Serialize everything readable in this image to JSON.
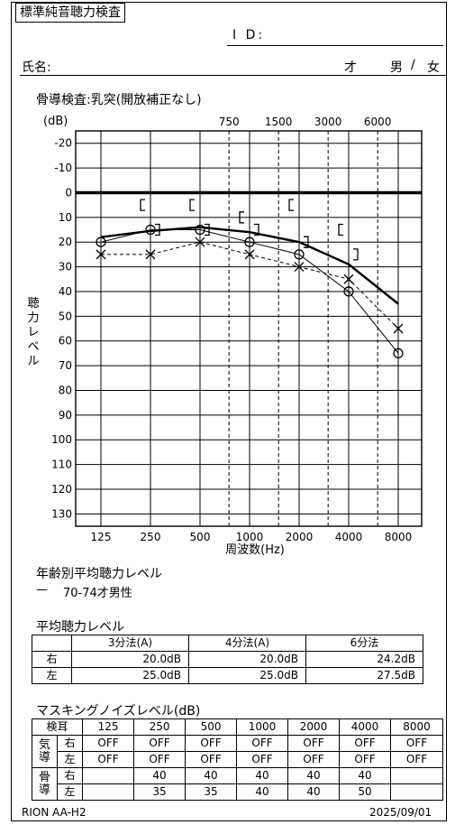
{
  "header": {
    "form_title": "標準純音聴力検査",
    "id_label": "I D:",
    "name_label": "氏名:",
    "age_unit": "才",
    "sex_male": "男",
    "sex_sep": "/",
    "sex_female": "女"
  },
  "chart_data": {
    "type": "line",
    "title": "骨導検査:乳突(開放補正なし)",
    "xlabel": "周波数(Hz)",
    "ylabel": "聴力レベル",
    "yunit_label": "(dB)",
    "x_scale": "log2",
    "x_categories": [
      "125",
      "250",
      "500",
      "1000",
      "2000",
      "4000",
      "8000"
    ],
    "x_interoctave": [
      "750",
      "1500",
      "3000",
      "6000"
    ],
    "y_ticks": [
      "-20",
      "-10",
      "0",
      "10",
      "20",
      "30",
      "40",
      "50",
      "60",
      "70",
      "80",
      "90",
      "100",
      "110",
      "120",
      "130"
    ],
    "ylim": [
      -25,
      135
    ],
    "y_inverted": true,
    "grid": true,
    "reference_line_db": 0,
    "series": [
      {
        "marker": "circle",
        "style": "solid-thin",
        "x": [
          125,
          250,
          500,
          1000,
          2000,
          4000,
          8000
        ],
        "y": [
          20,
          15,
          15,
          20,
          25,
          40,
          65
        ]
      },
      {
        "marker": "cross",
        "style": "dashed",
        "x": [
          125,
          250,
          500,
          1000,
          2000,
          4000,
          8000
        ],
        "y": [
          25,
          25,
          20,
          25,
          30,
          35,
          55
        ]
      },
      {
        "marker": "none",
        "style": "solid-thick",
        "x": [
          125,
          250,
          500,
          1000,
          2000,
          4000,
          8000
        ],
        "y": [
          18,
          15.5,
          14,
          16,
          20,
          29,
          45
        ]
      },
      {
        "marker": "bracket-left",
        "style": "none",
        "x": [
          250,
          500,
          1000,
          2000,
          4000
        ],
        "y": [
          5,
          5,
          10,
          5,
          15
        ]
      },
      {
        "marker": "bracket-right",
        "style": "none",
        "x": [
          250,
          500,
          1000,
          2000,
          4000
        ],
        "y": [
          15,
          15,
          15,
          20,
          25
        ]
      }
    ]
  },
  "age_reference": {
    "title": "年齢別平均聴力レベル",
    "legend_symbol": "—",
    "legend_label": "70-74才男性"
  },
  "average_table": {
    "title": "平均聴力レベル",
    "headers": [
      "",
      "3分法(A)",
      "4分法(A)",
      "6分法"
    ],
    "rows": [
      {
        "label": "右",
        "values": [
          "20.0dB",
          "20.0dB",
          "24.2dB"
        ]
      },
      {
        "label": "左",
        "values": [
          "25.0dB",
          "25.0dB",
          "27.5dB"
        ]
      }
    ]
  },
  "masking_table": {
    "title": "マスキングノイズレベル(dB)",
    "header_label": "検耳",
    "freqs": [
      "125",
      "250",
      "500",
      "1000",
      "2000",
      "4000",
      "8000"
    ],
    "air_label": "気導",
    "bone_label": "骨導",
    "right_label": "右",
    "left_label": "左",
    "air_right": [
      "OFF",
      "OFF",
      "OFF",
      "OFF",
      "OFF",
      "OFF",
      "OFF"
    ],
    "air_left": [
      "OFF",
      "OFF",
      "OFF",
      "OFF",
      "OFF",
      "OFF",
      "OFF"
    ],
    "bone_right": [
      "",
      "40",
      "40",
      "40",
      "40",
      "40",
      ""
    ],
    "bone_left": [
      "",
      "35",
      "35",
      "40",
      "40",
      "50",
      ""
    ]
  },
  "footer": {
    "device": "RION AA-H2",
    "date": "2025/09/01"
  }
}
